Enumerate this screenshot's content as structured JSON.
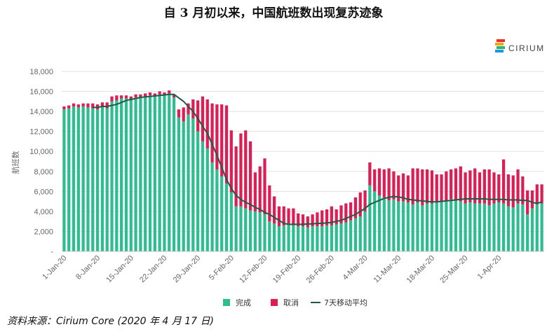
{
  "title": "自 3 月初以来，中国航班数出现复苏迹象",
  "brand": {
    "name": "CIRIUM",
    "colors": [
      "#e6332a",
      "#f7a600",
      "#2ab27b",
      "#1d9ad6"
    ]
  },
  "source": "资料来源：Cirium Core (2020 年 4 月 17 日)",
  "colors": {
    "completed": "#2dbd8f",
    "cancelled": "#dd1e54",
    "avg": "#1f5a46",
    "grid": "#e1e1e1"
  },
  "chart_data": {
    "type": "bar",
    "stacked": true,
    "title": "自 3 月初以来，中国航班数出现复苏迹象",
    "ylabel": "航班数",
    "ylim": [
      0,
      18000
    ],
    "yticks": [
      0,
      2000,
      4000,
      6000,
      8000,
      10000,
      12000,
      14000,
      16000,
      18000
    ],
    "ytick_labels": [
      "-",
      "2,000",
      "4,000",
      "6,000",
      "8,000",
      "10,000",
      "12,000",
      "14,000",
      "16,000",
      "18,000"
    ],
    "xtick_labels": [
      "1-Jan-20",
      "8-Jan-20",
      "15-Jan-20",
      "22-Jan-20",
      "29-Jan-20",
      "5-Feb-20",
      "12-Feb-20",
      "19-Feb-20",
      "26-Feb-20",
      "4-Mar-20",
      "11-Mar-20",
      "18-Mar-20",
      "25-Mar-20",
      "1-Apr-20"
    ],
    "xtick_every": 7,
    "grid": true,
    "legend_position": "bottom",
    "series": [
      {
        "name": "完成",
        "values": [
          14200,
          14300,
          14500,
          14400,
          14500,
          14400,
          14300,
          14200,
          14400,
          14300,
          15000,
          15100,
          15300,
          15300,
          15200,
          15400,
          15400,
          15500,
          15600,
          15500,
          15700,
          15600,
          15800,
          15400,
          13400,
          13000,
          13700,
          13300,
          12000,
          11000,
          10300,
          8900,
          8200,
          7500,
          6800,
          5900,
          4500,
          4500,
          4300,
          4100,
          4000,
          3900,
          3700,
          3000,
          2800,
          2500,
          2600,
          2800,
          2600,
          2500,
          2500,
          2400,
          2500,
          2500,
          2500,
          2600,
          2600,
          2700,
          2800,
          2900,
          3100,
          3300,
          3500,
          4000,
          6600,
          6000,
          5600,
          5400,
          5100,
          5200,
          5000,
          5000,
          4900,
          4700,
          4900,
          4600,
          4800,
          4800,
          4900,
          5000,
          5000,
          5200,
          5200,
          5000,
          4800,
          4900,
          4800,
          4800,
          4800,
          4600,
          4800,
          4900,
          4800,
          4500,
          4400,
          4800,
          4700,
          3700,
          4300,
          4700,
          4800
        ]
      },
      {
        "name": "取消",
        "values": [
          300,
          300,
          300,
          300,
          300,
          400,
          500,
          500,
          500,
          600,
          500,
          500,
          300,
          300,
          300,
          300,
          300,
          300,
          300,
          300,
          300,
          300,
          300,
          300,
          800,
          1400,
          1100,
          1900,
          3100,
          4500,
          4900,
          5900,
          6500,
          7200,
          7800,
          6200,
          6000,
          7300,
          7800,
          6900,
          3900,
          4600,
          5600,
          3600,
          2700,
          2000,
          1900,
          1500,
          1700,
          1300,
          1200,
          1100,
          1200,
          1400,
          1600,
          1600,
          1900,
          1500,
          1800,
          1900,
          1800,
          2100,
          2400,
          2100,
          2300,
          2200,
          2700,
          2800,
          3200,
          2800,
          2600,
          2800,
          2700,
          3600,
          3400,
          3600,
          3400,
          3300,
          2800,
          2700,
          3000,
          3000,
          3100,
          3500,
          3100,
          3200,
          3500,
          3100,
          3400,
          3600,
          3100,
          2800,
          4400,
          3200,
          3200,
          3400,
          2800,
          2400,
          1800,
          2000,
          1900
        ]
      },
      {
        "name": "7天移动平均",
        "type": "line",
        "values": [
          null,
          null,
          null,
          null,
          null,
          null,
          14400,
          14400,
          14500,
          14500,
          14600,
          14700,
          14900,
          15100,
          15200,
          15300,
          15400,
          15450,
          15500,
          15550,
          15600,
          15650,
          15700,
          15700,
          15350,
          15000,
          14500,
          14000,
          13300,
          12500,
          11800,
          10700,
          9600,
          8400,
          7200,
          6300,
          5600,
          5200,
          4900,
          4700,
          4400,
          4200,
          3900,
          3700,
          3400,
          3100,
          2800,
          2700,
          2700,
          2700,
          2700,
          2750,
          2750,
          2800,
          2800,
          2850,
          2900,
          3000,
          3100,
          3300,
          3500,
          3700,
          4000,
          4300,
          4700,
          4900,
          5100,
          5300,
          5400,
          5500,
          5450,
          5350,
          5200,
          5150,
          5100,
          5050,
          5000,
          4950,
          4950,
          5000,
          5050,
          5100,
          5150,
          5200,
          5250,
          5250,
          5250,
          5250,
          5250,
          5200,
          5200,
          5200,
          5200,
          5150,
          5150,
          5150,
          5100,
          5100,
          4900,
          4800,
          4950
        ]
      }
    ]
  }
}
